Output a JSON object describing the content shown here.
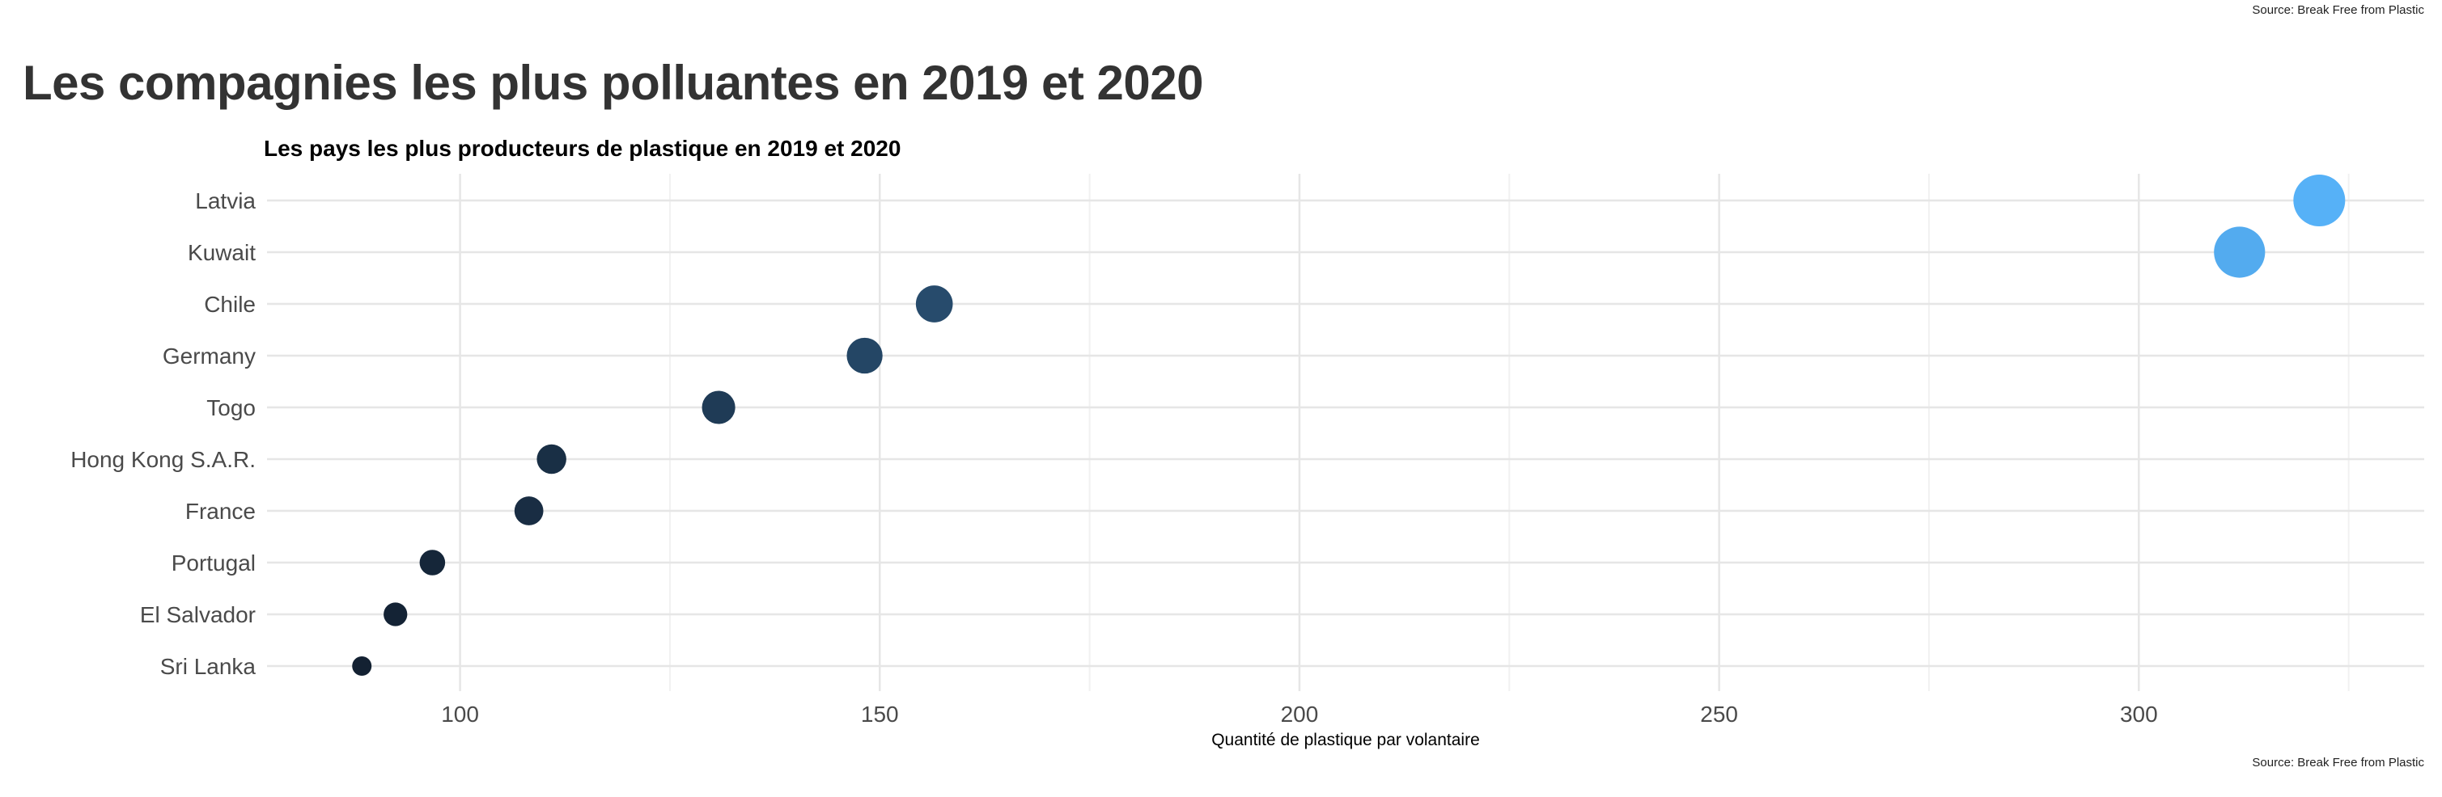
{
  "source_top": "Source: Break Free from Plastic",
  "source_bottom": "Source: Break Free from Plastic",
  "title": "Les compagnies les plus polluantes en 2019 et 2020",
  "chart_data": {
    "type": "scatter",
    "subtitle": "Les pays les plus producteurs de plastique en 2019 et 2020",
    "xlabel": "Quantité de plastique par volantaire",
    "ylabel": "",
    "xlim": [
      77,
      334
    ],
    "x_ticks": [
      100,
      150,
      200,
      250,
      300
    ],
    "x_tick_labels": [
      "100",
      "150",
      "200",
      "250",
      "300"
    ],
    "grid": true,
    "legend": "none",
    "categories": [
      "Latvia",
      "Kuwait",
      "Chile",
      "Germany",
      "Togo",
      "Hong Kong S.A.R.",
      "France",
      "Portugal",
      "El Salvador",
      "Sri Lanka"
    ],
    "values": [
      321.5,
      312,
      156.5,
      148.2,
      130.8,
      110.9,
      108.2,
      96.7,
      92.3,
      88.3
    ],
    "color_scale": {
      "low": "#132132",
      "high": "#56b1f7"
    }
  }
}
